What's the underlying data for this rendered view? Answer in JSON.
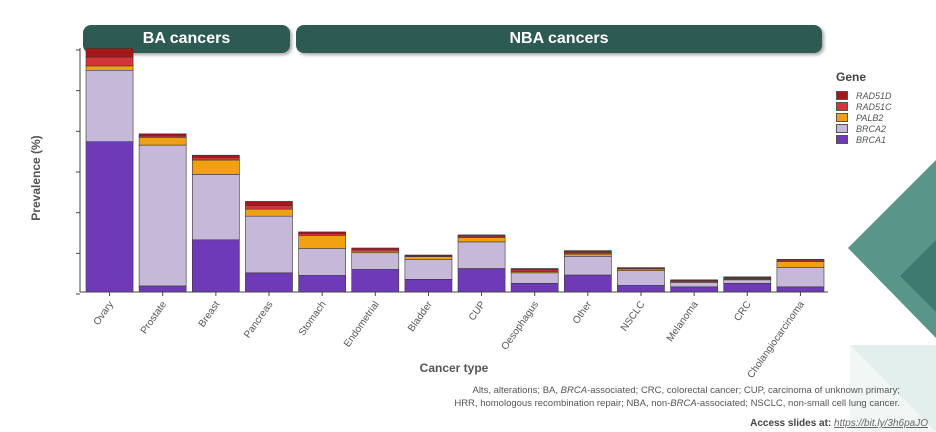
{
  "groups": {
    "ba_label": "BA cancers",
    "nba_label": "NBA cancers"
  },
  "legend": {
    "title": "Gene",
    "items": [
      {
        "label": "RAD51D",
        "color": "#a31818"
      },
      {
        "label": "RAD51C",
        "color": "#d6333a"
      },
      {
        "label": "PALB2",
        "color": "#f0a010"
      },
      {
        "label": "BRCA2",
        "color": "#c6b8d8"
      },
      {
        "label": "BRCA1",
        "color": "#6f3ab8"
      }
    ]
  },
  "footnotes": {
    "line1_parts": [
      "Alts, alterations; BA, ",
      "BRCA",
      "-associated; CRC, colorectal cancer; CUP, carcinoma of unknown primary;"
    ],
    "line2_parts": [
      "HRR, homologous recombination repair; NBA, non-",
      "BRCA",
      "-associated; NSCLC, non-small cell lung cancer."
    ]
  },
  "access": {
    "label": "Access slides at:",
    "url": "https://bit.ly/3h6paJO"
  },
  "chart_data": {
    "type": "bar",
    "stacked": true,
    "xlabel": "Cancer type",
    "ylabel": "Prevalence (%)",
    "ylim": [
      0,
      5.6
    ],
    "ytick_count": 6,
    "categories": [
      "Ovary",
      "Prostate",
      "Breast",
      "Pancreas",
      "Stomach",
      "Endometrial",
      "Bladder",
      "CUP",
      "Oesophagus",
      "Other",
      "NSCLC",
      "Melanoma",
      "CRC",
      "Cholangiocarcinoma"
    ],
    "series": [
      {
        "name": "BRCA1",
        "color": "#6f3ab8",
        "values": [
          3.45,
          0.14,
          1.2,
          0.44,
          0.38,
          0.52,
          0.29,
          0.54,
          0.2,
          0.39,
          0.15,
          0.12,
          0.2,
          0.12
        ]
      },
      {
        "name": "BRCA2",
        "color": "#c6b8d8",
        "values": [
          1.64,
          3.23,
          1.5,
          1.3,
          0.62,
          0.38,
          0.46,
          0.61,
          0.24,
          0.43,
          0.34,
          0.1,
          0.08,
          0.44
        ]
      },
      {
        "name": "PALB2",
        "color": "#f0a010",
        "values": [
          0.1,
          0.18,
          0.33,
          0.16,
          0.3,
          0.04,
          0.06,
          0.1,
          0.03,
          0.05,
          0.04,
          0.02,
          0.02,
          0.14
        ]
      },
      {
        "name": "RAD51C",
        "color": "#d6333a",
        "values": [
          0.2,
          0.03,
          0.06,
          0.08,
          0.04,
          0.04,
          0.02,
          0.03,
          0.04,
          0.04,
          0.01,
          0.02,
          0.02,
          0.03
        ]
      },
      {
        "name": "RAD51D",
        "color": "#a31818",
        "values": [
          0.2,
          0.05,
          0.05,
          0.1,
          0.04,
          0.03,
          0.02,
          0.03,
          0.03,
          0.04,
          0.02,
          0.02,
          0.03,
          0.02
        ]
      }
    ]
  }
}
